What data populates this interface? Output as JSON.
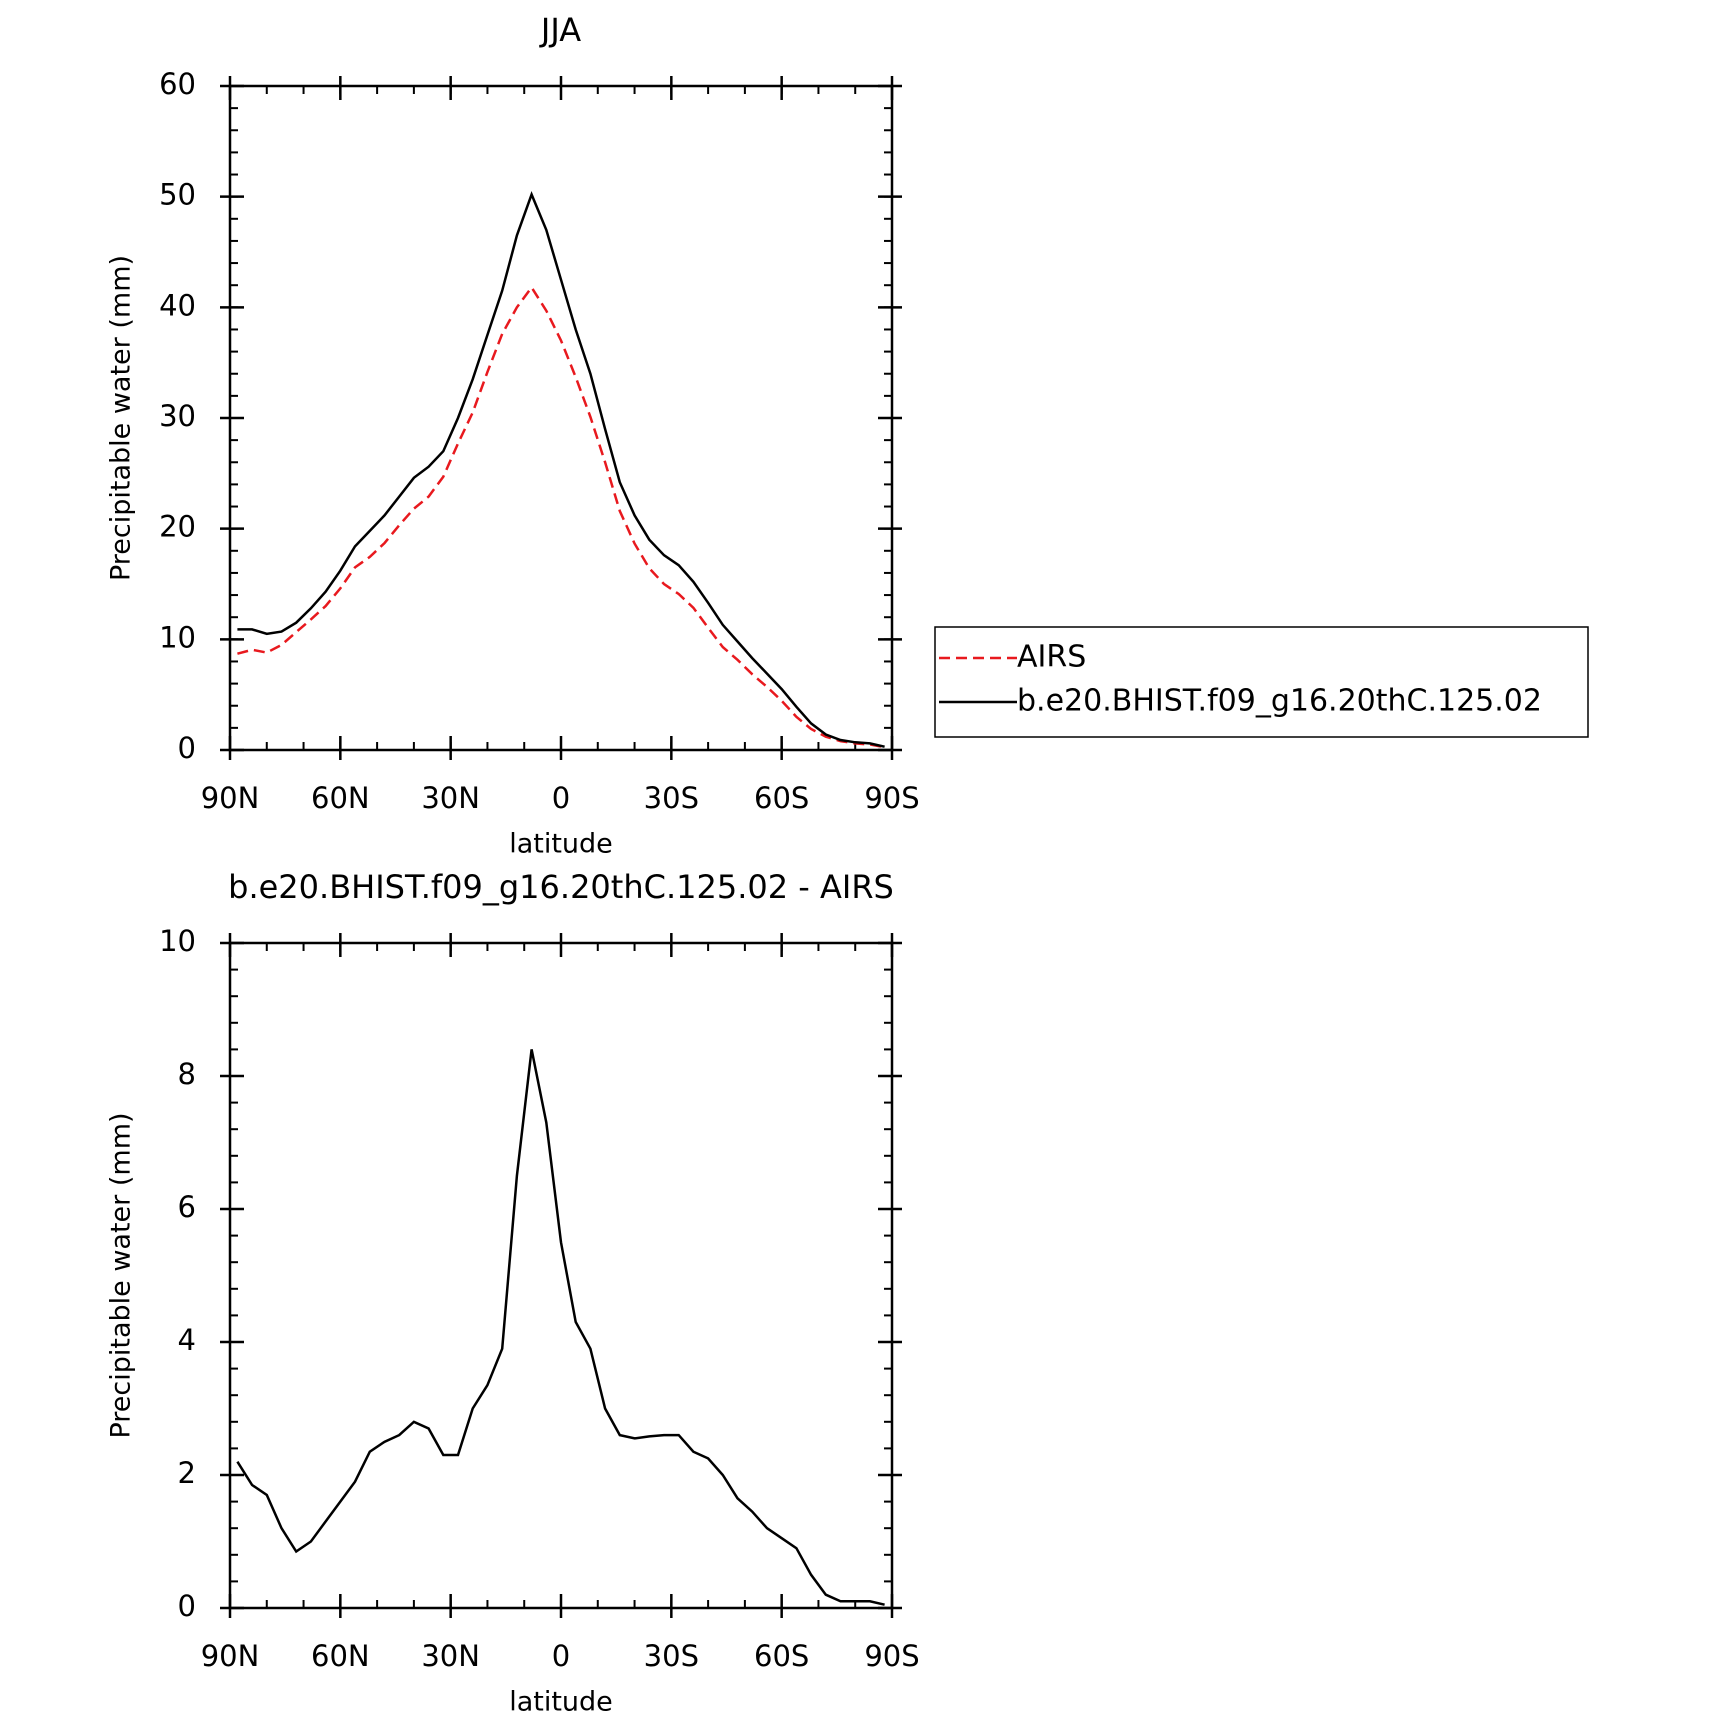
{
  "chart_data": [
    {
      "type": "line",
      "title": "JJA",
      "xlabel": "latitude",
      "ylabel": "Precipitable water (mm)",
      "x": [
        88,
        84,
        80,
        76,
        72,
        68,
        64,
        60,
        56,
        52,
        48,
        44,
        40,
        36,
        32,
        28,
        24,
        20,
        16,
        12,
        8,
        4,
        0,
        -4,
        -8,
        -12,
        -16,
        -20,
        -24,
        -28,
        -32,
        -36,
        -40,
        -44,
        -48,
        -52,
        -56,
        -60,
        -64,
        -68,
        -72,
        -76,
        -80,
        -84,
        -88
      ],
      "series": [
        {
          "name": "AIRS",
          "color": "#e8191e",
          "dashed": true,
          "values": [
            8.7,
            9.05,
            8.8,
            9.5,
            10.65,
            11.8,
            13.0,
            14.6,
            16.5,
            17.45,
            18.7,
            20.3,
            21.8,
            22.9,
            24.7,
            27.7,
            30.5,
            34.15,
            37.6,
            40.0,
            41.8,
            39.7,
            37.0,
            33.7,
            30.1,
            26.0,
            21.6,
            18.65,
            16.42,
            15.0,
            14.1,
            12.85,
            11.05,
            9.3,
            8.15,
            6.85,
            5.7,
            4.45,
            3.0,
            1.9,
            1.2,
            0.8,
            0.6,
            0.5,
            0.25
          ]
        },
        {
          "name": "b.e20.BHIST.f09_g16.20thC.125.02",
          "color": "#000000",
          "dashed": false,
          "values": [
            10.9,
            10.9,
            10.5,
            10.7,
            11.5,
            12.8,
            14.3,
            16.2,
            18.4,
            19.8,
            21.2,
            22.9,
            24.6,
            25.6,
            27.0,
            30.0,
            33.5,
            37.5,
            41.5,
            46.5,
            50.2,
            47.0,
            42.5,
            38.0,
            34.0,
            29.0,
            24.2,
            21.2,
            19.0,
            17.6,
            16.7,
            15.2,
            13.3,
            11.3,
            9.8,
            8.3,
            6.9,
            5.5,
            3.9,
            2.4,
            1.4,
            0.9,
            0.7,
            0.6,
            0.3
          ]
        }
      ],
      "xlim": [
        90,
        -90
      ],
      "xticks": [
        {
          "value": 90,
          "label": "90N"
        },
        {
          "value": 60,
          "label": "60N"
        },
        {
          "value": 30,
          "label": "30N"
        },
        0,
        {
          "value": -30,
          "label": "30S"
        },
        {
          "value": -60,
          "label": "60S"
        },
        {
          "value": -90,
          "label": "90S"
        }
      ],
      "ylim": [
        0,
        60
      ],
      "yticks": [
        0,
        10,
        20,
        30,
        40,
        50,
        60
      ],
      "legend": "right"
    },
    {
      "type": "line",
      "title": "b.e20.BHIST.f09_g16.20thC.125.02 - AIRS",
      "xlabel": "latitude",
      "ylabel": "Precipitable water (mm)",
      "x": [
        88,
        84,
        80,
        76,
        72,
        68,
        64,
        60,
        56,
        52,
        48,
        44,
        40,
        36,
        32,
        28,
        24,
        20,
        16,
        12,
        8,
        4,
        0,
        -4,
        -8,
        -12,
        -16,
        -20,
        -24,
        -28,
        -32,
        -36,
        -40,
        -44,
        -48,
        -52,
        -56,
        -60,
        -64,
        -68,
        -72,
        -76,
        -80,
        -84,
        -88
      ],
      "color": "#000000",
      "values": [
        2.2,
        1.85,
        1.7,
        1.2,
        0.85,
        1.0,
        1.3,
        1.6,
        1.9,
        2.35,
        2.5,
        2.6,
        2.8,
        2.7,
        2.3,
        2.3,
        3.0,
        3.35,
        3.9,
        6.5,
        8.4,
        7.3,
        5.5,
        4.3,
        3.9,
        3.0,
        2.6,
        2.55,
        2.58,
        2.6,
        2.6,
        2.35,
        2.25,
        2.0,
        1.65,
        1.45,
        1.2,
        1.05,
        0.9,
        0.5,
        0.2,
        0.1,
        0.1,
        0.1,
        0.05
      ],
      "xlim": [
        90,
        -90
      ],
      "xticks": [
        {
          "value": 90,
          "label": "90N"
        },
        {
          "value": 60,
          "label": "60N"
        },
        {
          "value": 30,
          "label": "30N"
        },
        0,
        {
          "value": -30,
          "label": "30S"
        },
        {
          "value": -60,
          "label": "60S"
        },
        {
          "value": -90,
          "label": "90S"
        }
      ],
      "ylim": [
        0,
        10
      ],
      "yticks": [
        0,
        2,
        4,
        6,
        8,
        10
      ]
    }
  ]
}
